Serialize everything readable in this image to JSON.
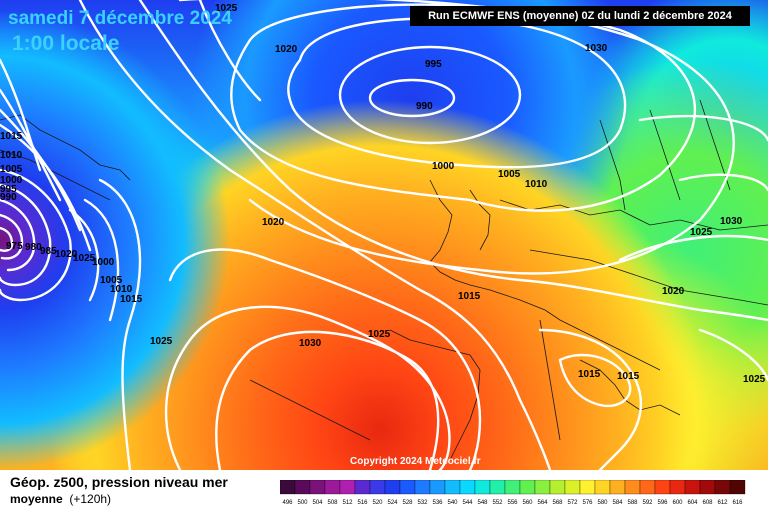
{
  "header": {
    "date": "samedi 7 décembre 2024",
    "time": "1:00 locale",
    "run": "Run ECMWF ENS (moyenne) 0Z du lundi 2 décembre 2024"
  },
  "copyright": "Copyright 2024 Meteociel.fr",
  "footer": {
    "title": "Géop. z500, pression niveau mer",
    "subtitle": "moyenne",
    "lead": "(+120h)"
  },
  "pressure_labels": [
    "1025",
    "1020",
    "995",
    "990",
    "1000",
    "1005",
    "1010",
    "1015",
    "1020",
    "1025",
    "1030",
    "1025",
    "1020",
    "1015",
    "1015",
    "1025",
    "1030",
    "1025",
    "1015",
    "1010",
    "1005",
    "1000",
    "995",
    "990",
    "985",
    "980",
    "975",
    "1000",
    "1005",
    "1010",
    "1015",
    "1020",
    "1025",
    "1030"
  ],
  "legend": {
    "values": [
      "496",
      "500",
      "504",
      "508",
      "512",
      "516",
      "520",
      "524",
      "528",
      "532",
      "536",
      "540",
      "544",
      "548",
      "552",
      "556",
      "560",
      "564",
      "568",
      "572",
      "576",
      "580",
      "584",
      "588",
      "592",
      "596",
      "600",
      "604",
      "608",
      "612",
      "616"
    ],
    "colors": [
      "#3a0a3a",
      "#5a0a5a",
      "#7a127a",
      "#9a1a9a",
      "#b020b0",
      "#5a2ad0",
      "#3a3ae8",
      "#1e3ef0",
      "#1a5aff",
      "#1e7aff",
      "#1a9aff",
      "#12bcff",
      "#0ad8ff",
      "#10eadd",
      "#20f0a8",
      "#40f078",
      "#60f050",
      "#8af040",
      "#b4f030",
      "#dcf028",
      "#fff030",
      "#ffd424",
      "#ffb020",
      "#ff8c1c",
      "#ff6818",
      "#ff4414",
      "#e82810",
      "#c8140c",
      "#a00a0a",
      "#780808",
      "#500404"
    ]
  }
}
